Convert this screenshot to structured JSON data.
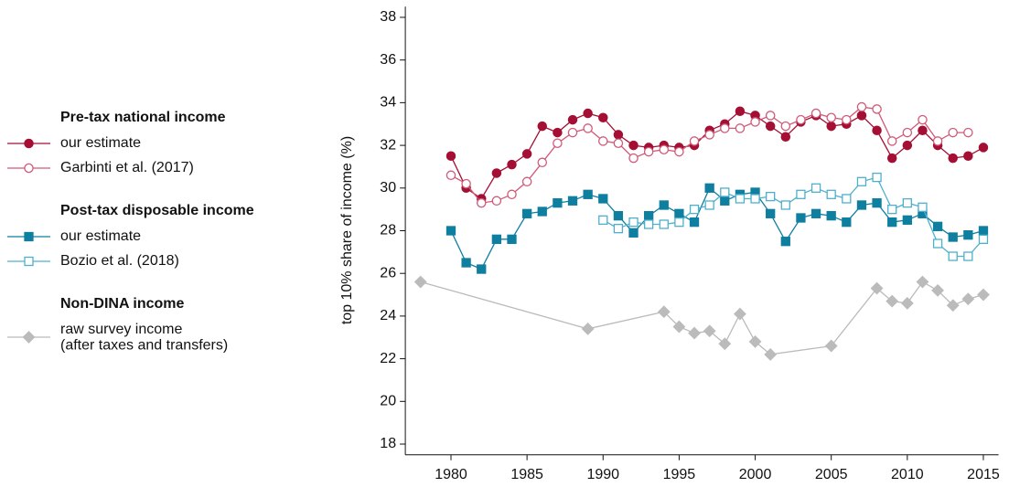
{
  "chart_data": {
    "type": "line",
    "y_label": "top 10% share of income (%)",
    "xlim": [
      1977,
      2016
    ],
    "xticks": [
      1980,
      1985,
      1990,
      1995,
      2000,
      2005,
      2010,
      2015
    ],
    "ylim": [
      17.5,
      38.5
    ],
    "yticks": [
      18,
      20,
      22,
      24,
      26,
      28,
      30,
      32,
      34,
      36,
      38
    ],
    "legend": "left",
    "series": [
      {
        "group": "Pre-tax national income",
        "name": "our estimate",
        "color": "#a50f34",
        "marker": "circle",
        "filled": true,
        "x": [
          1980,
          1981,
          1982,
          1983,
          1984,
          1985,
          1986,
          1987,
          1988,
          1989,
          1990,
          1991,
          1992,
          1993,
          1994,
          1995,
          1996,
          1997,
          1998,
          1999,
          2000,
          2001,
          2002,
          2003,
          2004,
          2005,
          2006,
          2007,
          2008,
          2009,
          2010,
          2011,
          2012,
          2013,
          2014,
          2015
        ],
        "values": [
          31.5,
          30.0,
          29.5,
          30.7,
          31.1,
          31.6,
          32.9,
          32.6,
          33.2,
          33.5,
          33.3,
          32.5,
          32.0,
          31.9,
          32.0,
          31.9,
          32.0,
          32.7,
          33.0,
          33.6,
          33.4,
          32.9,
          32.4,
          33.1,
          33.4,
          32.9,
          33.0,
          33.4,
          32.7,
          31.4,
          32.0,
          32.7,
          32.0,
          31.4,
          31.5,
          31.9
        ]
      },
      {
        "group": "Pre-tax national income",
        "name": "Garbinti et al. (2017)",
        "color": "#d05a78",
        "marker": "circle",
        "filled": false,
        "x": [
          1980,
          1981,
          1982,
          1983,
          1984,
          1985,
          1986,
          1987,
          1988,
          1989,
          1990,
          1991,
          1992,
          1993,
          1994,
          1995,
          1996,
          1997,
          1998,
          1999,
          2000,
          2001,
          2002,
          2003,
          2004,
          2005,
          2006,
          2007,
          2008,
          2009,
          2010,
          2011,
          2012,
          2013,
          2014
        ],
        "values": [
          30.6,
          30.2,
          29.3,
          29.4,
          29.7,
          30.3,
          31.2,
          32.1,
          32.6,
          32.8,
          32.2,
          32.1,
          31.4,
          31.7,
          31.8,
          31.7,
          32.2,
          32.5,
          32.8,
          32.8,
          33.1,
          33.4,
          32.9,
          33.2,
          33.5,
          33.3,
          33.2,
          33.8,
          33.7,
          32.2,
          32.6,
          33.2,
          32.2,
          32.6,
          32.6
        ]
      },
      {
        "group": "Post-tax disposable income",
        "name": "our estimate",
        "color": "#0f7fa0",
        "marker": "square",
        "filled": true,
        "x": [
          1980,
          1981,
          1982,
          1983,
          1984,
          1985,
          1986,
          1987,
          1988,
          1989,
          1990,
          1991,
          1992,
          1993,
          1994,
          1995,
          1996,
          1997,
          1998,
          1999,
          2000,
          2001,
          2002,
          2003,
          2004,
          2005,
          2006,
          2007,
          2008,
          2009,
          2010,
          2011,
          2012,
          2013,
          2014,
          2015
        ],
        "values": [
          28.0,
          26.5,
          26.2,
          27.6,
          27.6,
          28.8,
          28.9,
          29.3,
          29.4,
          29.7,
          29.5,
          28.7,
          27.9,
          28.7,
          29.2,
          28.8,
          28.4,
          30.0,
          29.4,
          29.7,
          29.8,
          28.8,
          27.5,
          28.6,
          28.8,
          28.7,
          28.4,
          29.2,
          29.3,
          28.4,
          28.5,
          28.8,
          28.2,
          27.7,
          27.8,
          28.0
        ]
      },
      {
        "group": "Post-tax disposable income",
        "name": "Bozio et al. (2018)",
        "color": "#4fb0cc",
        "marker": "square",
        "filled": false,
        "x": [
          1990,
          1991,
          1992,
          1993,
          1994,
          1995,
          1996,
          1997,
          1998,
          1999,
          2000,
          2001,
          2002,
          2003,
          2004,
          2005,
          2006,
          2007,
          2008,
          2009,
          2010,
          2011,
          2012,
          2013,
          2014,
          2015
        ],
        "values": [
          28.5,
          28.1,
          28.4,
          28.3,
          28.3,
          28.4,
          29.0,
          29.2,
          29.8,
          29.5,
          29.5,
          29.6,
          29.2,
          29.7,
          30.0,
          29.7,
          29.5,
          30.3,
          30.5,
          29.0,
          29.3,
          29.1,
          27.4,
          26.8,
          26.8,
          27.6
        ]
      },
      {
        "group": "Non-DINA income",
        "name": "raw survey income\n(after taxes and transfers)",
        "color": "#bbbbbb",
        "marker": "diamond",
        "filled": true,
        "x": [
          1978,
          1989,
          1994,
          1995,
          1996,
          1997,
          1998,
          1999,
          2000,
          2001,
          2005,
          2008,
          2009,
          2010,
          2011,
          2012,
          2013,
          2014,
          2015
        ],
        "values": [
          25.6,
          23.4,
          24.2,
          23.5,
          23.2,
          23.3,
          22.7,
          24.1,
          22.8,
          22.2,
          22.6,
          25.3,
          24.7,
          24.6,
          25.6,
          25.2,
          24.5,
          24.8,
          25.0
        ]
      }
    ]
  }
}
